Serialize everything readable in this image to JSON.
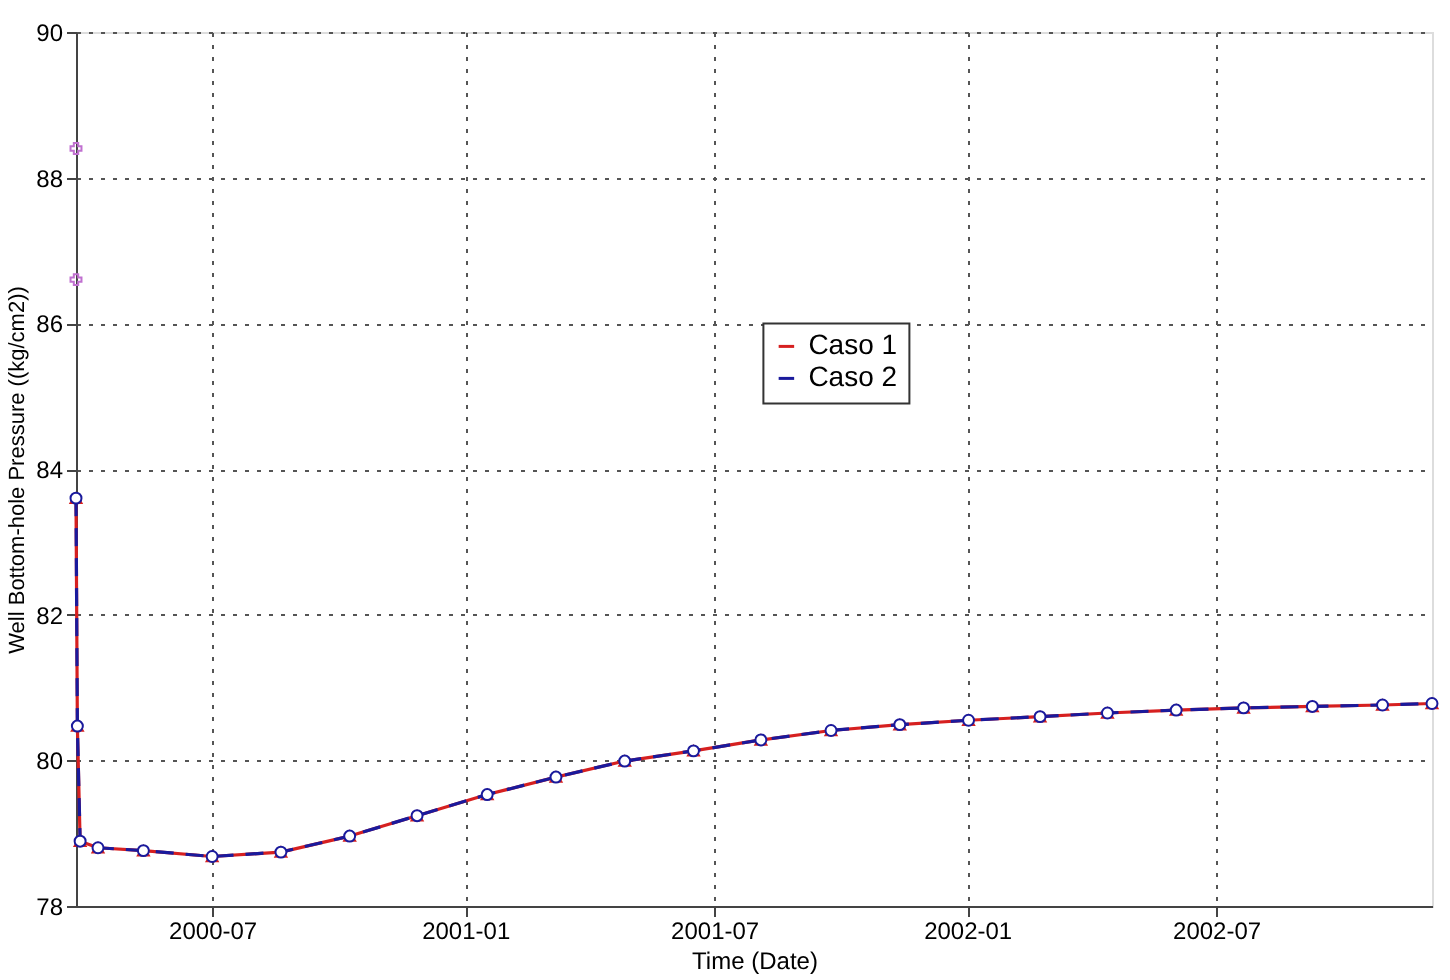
{
  "chart_data": {
    "type": "line",
    "xlabel": "Time (Date)",
    "ylabel": "Well Bottom-hole Pressure ((kg/cm2))",
    "xlim": [
      "2000-03-24",
      "2002-12-05"
    ],
    "xticks": [
      "2000-07",
      "2001-01",
      "2001-07",
      "2002-01",
      "2002-07"
    ],
    "ylim": [
      78,
      90
    ],
    "yticks": [
      78,
      80,
      82,
      84,
      86,
      88,
      90
    ],
    "grid": true,
    "legend": "top right",
    "series": [
      {
        "name": "Caso 1",
        "color": "#d62020",
        "marker": "triangle",
        "line_style": "solid",
        "x": [
          "2000-03-24",
          "2000-03-25",
          "2000-03-27",
          "2000-04-09",
          "2000-05-12",
          "2000-07-01",
          "2000-08-20",
          "2000-10-09",
          "2000-11-27",
          "2001-01-17",
          "2001-03-08",
          "2001-04-27",
          "2001-06-16",
          "2001-08-04",
          "2001-09-24",
          "2001-11-13",
          "2002-01-02",
          "2002-02-23",
          "2002-04-13",
          "2002-06-02",
          "2002-07-21",
          "2002-09-09",
          "2002-10-30",
          "2002-12-05"
        ],
        "values": [
          83.6,
          80.47,
          78.89,
          78.8,
          78.76,
          78.68,
          78.74,
          78.96,
          79.24,
          79.53,
          79.77,
          79.99,
          80.13,
          80.28,
          80.41,
          80.49,
          80.55,
          80.6,
          80.65,
          80.69,
          80.72,
          80.74,
          80.76,
          80.78
        ]
      },
      {
        "name": "Caso 2",
        "color": "#1a1a9c",
        "marker": "circle",
        "line_style": "dashed",
        "x": [
          "2000-03-24",
          "2000-03-25",
          "2000-03-27",
          "2000-04-09",
          "2000-05-12",
          "2000-07-01",
          "2000-08-20",
          "2000-10-09",
          "2000-11-27",
          "2001-01-17",
          "2001-03-08",
          "2001-04-27",
          "2001-06-16",
          "2001-08-04",
          "2001-09-24",
          "2001-11-13",
          "2002-01-02",
          "2002-02-23",
          "2002-04-13",
          "2002-06-02",
          "2002-07-21",
          "2002-09-09",
          "2002-10-30",
          "2002-12-05"
        ],
        "values": [
          83.6,
          80.47,
          78.89,
          78.8,
          78.76,
          78.68,
          78.74,
          78.96,
          79.24,
          79.53,
          79.77,
          79.99,
          80.13,
          80.28,
          80.41,
          80.49,
          80.55,
          80.6,
          80.65,
          80.69,
          80.72,
          80.74,
          80.76,
          80.78
        ]
      },
      {
        "type": "scatter",
        "color": "#c070d0",
        "marker": "cross",
        "x": [
          "2000-03-24",
          "2000-03-24"
        ],
        "values": [
          88.4,
          86.6
        ]
      }
    ]
  }
}
